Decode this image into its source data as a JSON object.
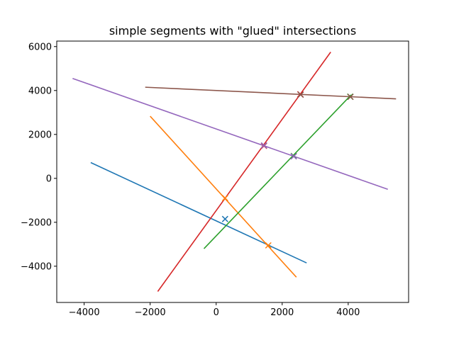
{
  "chart_data": {
    "type": "line",
    "title": "simple segments with \"glued\" intersections",
    "xlabel": "",
    "ylabel": "",
    "xlim": [
      -4830,
      5830
    ],
    "ylim": [
      -5650,
      6250
    ],
    "grid": false,
    "x_ticks": [
      -4000,
      -2000,
      0,
      2000,
      4000
    ],
    "y_ticks": [
      -4000,
      -2000,
      0,
      2000,
      4000,
      6000
    ],
    "x_tick_labels": [
      "−4000",
      "−2000",
      "0",
      "2000",
      "4000"
    ],
    "y_tick_labels": [
      "−4000",
      "−2000",
      "0",
      "2000",
      "4000",
      "6000"
    ],
    "series": [
      {
        "color": "#1f77b4",
        "x": [
          -3800,
          2740
        ],
        "y": [
          720,
          -3850
        ]
      },
      {
        "color": "#ff7f0e",
        "x": [
          -2000,
          2430
        ],
        "y": [
          2830,
          -4500
        ]
      },
      {
        "color": "#2ca02c",
        "x": [
          -370,
          4090
        ],
        "y": [
          -3200,
          3800
        ]
      },
      {
        "color": "#d62728",
        "x": [
          -1770,
          3470
        ],
        "y": [
          -5150,
          5750
        ]
      },
      {
        "color": "#9467bd",
        "x": [
          -4350,
          5200
        ],
        "y": [
          4550,
          -500
        ]
      },
      {
        "color": "#8c564b",
        "x": [
          -2150,
          5450
        ],
        "y": [
          4150,
          3620
        ]
      }
    ],
    "markers": [
      {
        "color": "#1f77b4",
        "x": 270,
        "y": -1850
      },
      {
        "color": "#ff7f0e",
        "x": 270,
        "y": -900
      },
      {
        "color": "#ff7f0e",
        "x": 1580,
        "y": -3050
      },
      {
        "color": "#2ca02c",
        "x": 2350,
        "y": 1020
      },
      {
        "color": "#2ca02c",
        "x": 4060,
        "y": 3720
      },
      {
        "color": "#d62728",
        "x": 1450,
        "y": 1480
      },
      {
        "color": "#d62728",
        "x": 2550,
        "y": 3830
      },
      {
        "color": "#9467bd",
        "x": 1450,
        "y": 1500
      },
      {
        "color": "#9467bd",
        "x": 2350,
        "y": 1000
      },
      {
        "color": "#8c564b",
        "x": 2560,
        "y": 3810
      },
      {
        "color": "#8c564b",
        "x": 4070,
        "y": 3710
      }
    ]
  }
}
